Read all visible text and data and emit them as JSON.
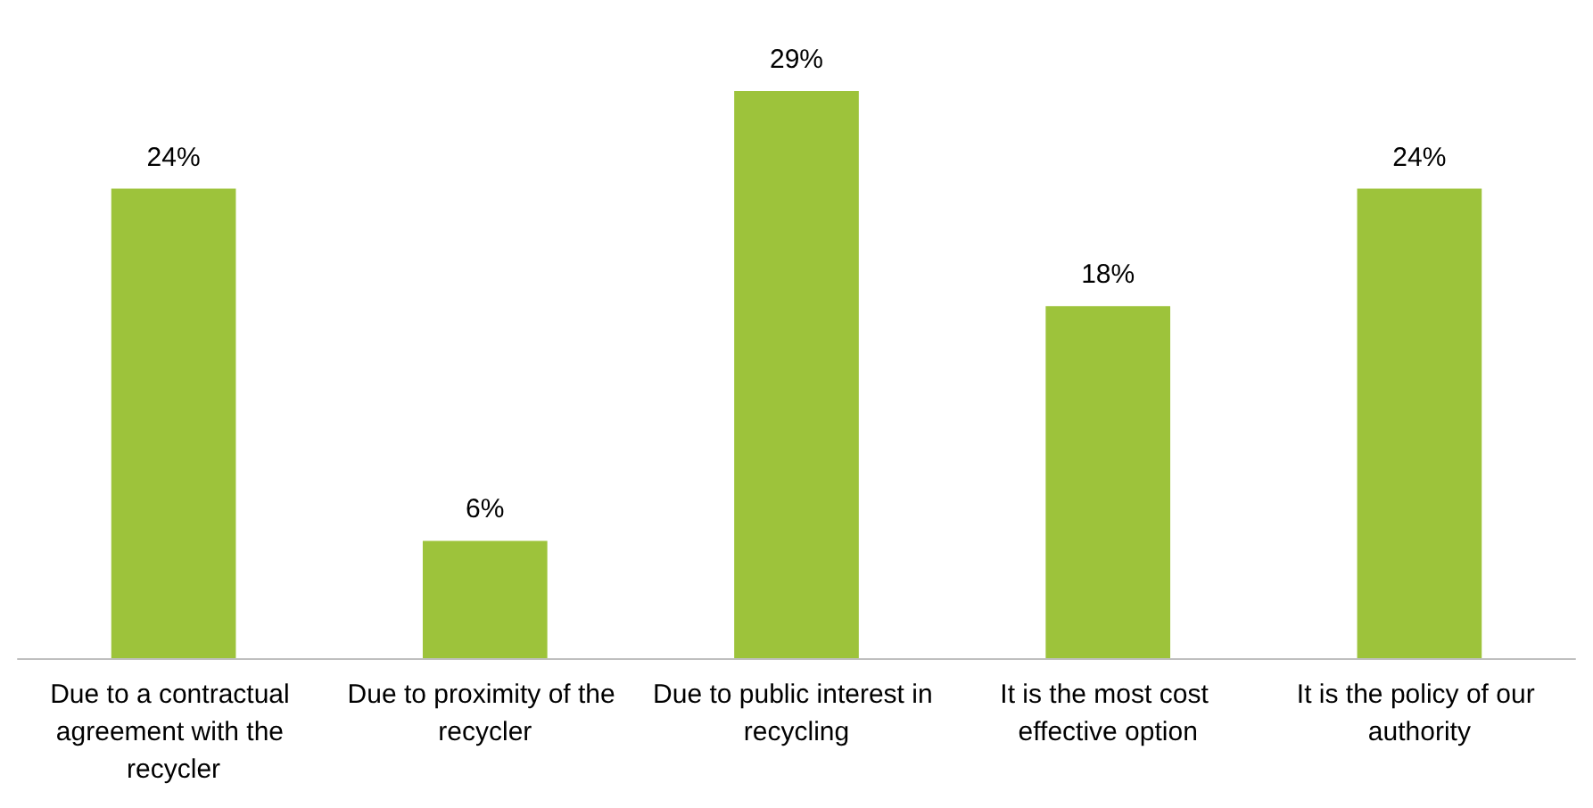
{
  "chart_data": {
    "type": "bar",
    "categories": [
      "Due to a contractual agreement with the recycler",
      "Due to proximity of the recycler",
      "Due to public interest in recycling",
      "It is the most cost effective option",
      "It is the policy of our authority"
    ],
    "values": [
      24,
      6,
      29,
      18,
      24
    ],
    "value_labels": [
      "24%",
      "6%",
      "29%",
      "18%",
      "24%"
    ],
    "color": "#9dc33b",
    "tick_labels": "x"
  }
}
